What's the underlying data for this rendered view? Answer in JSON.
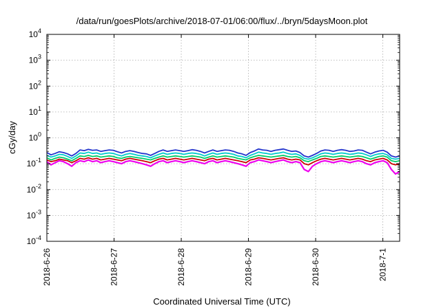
{
  "chart_data": {
    "type": "line",
    "title": "/data/run/goesPlots/archive/2018-07-01/06:00/flux/../bryn/5daysMoon.plot",
    "xlabel": "Coordinated Universal Time (UTC)",
    "ylabel": "cGy/day",
    "yscale": "log",
    "ylim": [
      0.0001,
      10000
    ],
    "y_ticks": [
      {
        "value": 0.0001,
        "base": "10",
        "exp": "-4"
      },
      {
        "value": 0.001,
        "base": "10",
        "exp": "-3"
      },
      {
        "value": 0.01,
        "base": "10",
        "exp": "-2"
      },
      {
        "value": 0.1,
        "base": "10",
        "exp": "-1"
      },
      {
        "value": 1,
        "base": "10",
        "exp": "0"
      },
      {
        "value": 10,
        "base": "10",
        "exp": "1"
      },
      {
        "value": 100,
        "base": "10",
        "exp": "2"
      },
      {
        "value": 1000,
        "base": "10",
        "exp": "3"
      },
      {
        "value": 10000,
        "base": "10",
        "exp": "4"
      }
    ],
    "xlim": [
      "2018-06-26T00:00",
      "2018-07-01T06:00"
    ],
    "x_ticks": [
      "2018-6-26",
      "2018-6-27",
      "2018-6-28",
      "2018-6-29",
      "2018-6-30",
      "2018-7-1"
    ],
    "grid": true,
    "series": [
      {
        "color": "#ee00ee",
        "typical": 0.11,
        "values": [
          0.12,
          0.09,
          0.11,
          0.13,
          0.12,
          0.1,
          0.08,
          0.11,
          0.13,
          0.12,
          0.14,
          0.12,
          0.13,
          0.11,
          0.12,
          0.13,
          0.12,
          0.11,
          0.1,
          0.12,
          0.13,
          0.12,
          0.11,
          0.1,
          0.09,
          0.08,
          0.1,
          0.12,
          0.13,
          0.11,
          0.12,
          0.13,
          0.12,
          0.11,
          0.12,
          0.13,
          0.12,
          0.11,
          0.1,
          0.12,
          0.13,
          0.11,
          0.12,
          0.13,
          0.12,
          0.11,
          0.1,
          0.09,
          0.08,
          0.11,
          0.12,
          0.14,
          0.13,
          0.12,
          0.11,
          0.12,
          0.13,
          0.14,
          0.12,
          0.11,
          0.12,
          0.11,
          0.06,
          0.05,
          0.08,
          0.1,
          0.12,
          0.13,
          0.12,
          0.11,
          0.12,
          0.13,
          0.12,
          0.11,
          0.12,
          0.13,
          0.12,
          0.1,
          0.09,
          0.11,
          0.12,
          0.13,
          0.11,
          0.06,
          0.04,
          0.05
        ]
      },
      {
        "color": "#cc0000",
        "typical": 0.13,
        "values": [
          0.14,
          0.12,
          0.13,
          0.15,
          0.14,
          0.13,
          0.11,
          0.13,
          0.16,
          0.15,
          0.17,
          0.15,
          0.16,
          0.14,
          0.15,
          0.16,
          0.15,
          0.14,
          0.13,
          0.15,
          0.16,
          0.15,
          0.14,
          0.13,
          0.12,
          0.11,
          0.13,
          0.15,
          0.16,
          0.14,
          0.15,
          0.16,
          0.15,
          0.14,
          0.15,
          0.16,
          0.15,
          0.14,
          0.13,
          0.15,
          0.16,
          0.14,
          0.15,
          0.16,
          0.15,
          0.14,
          0.13,
          0.12,
          0.11,
          0.14,
          0.15,
          0.17,
          0.16,
          0.15,
          0.14,
          0.15,
          0.16,
          0.17,
          0.15,
          0.14,
          0.15,
          0.14,
          0.1,
          0.09,
          0.11,
          0.13,
          0.15,
          0.16,
          0.15,
          0.14,
          0.15,
          0.16,
          0.15,
          0.14,
          0.15,
          0.16,
          0.15,
          0.13,
          0.12,
          0.14,
          0.15,
          0.16,
          0.14,
          0.1,
          0.09,
          0.1
        ]
      },
      {
        "color": "#00cc66",
        "typical": 0.16,
        "values": [
          0.17,
          0.14,
          0.16,
          0.18,
          0.17,
          0.15,
          0.13,
          0.16,
          0.2,
          0.19,
          0.21,
          0.19,
          0.2,
          0.18,
          0.19,
          0.2,
          0.19,
          0.17,
          0.16,
          0.18,
          0.19,
          0.18,
          0.17,
          0.16,
          0.15,
          0.14,
          0.16,
          0.18,
          0.2,
          0.18,
          0.19,
          0.2,
          0.19,
          0.18,
          0.19,
          0.2,
          0.19,
          0.18,
          0.16,
          0.18,
          0.2,
          0.18,
          0.19,
          0.2,
          0.19,
          0.18,
          0.16,
          0.15,
          0.14,
          0.17,
          0.19,
          0.21,
          0.2,
          0.19,
          0.18,
          0.19,
          0.2,
          0.21,
          0.19,
          0.18,
          0.19,
          0.17,
          0.13,
          0.12,
          0.14,
          0.16,
          0.19,
          0.2,
          0.19,
          0.18,
          0.19,
          0.2,
          0.19,
          0.18,
          0.19,
          0.2,
          0.19,
          0.17,
          0.15,
          0.17,
          0.19,
          0.2,
          0.18,
          0.13,
          0.12,
          0.13
        ]
      },
      {
        "color": "#00cccc",
        "typical": 0.2,
        "values": [
          0.21,
          0.18,
          0.2,
          0.23,
          0.22,
          0.19,
          0.16,
          0.2,
          0.26,
          0.25,
          0.28,
          0.25,
          0.26,
          0.23,
          0.25,
          0.26,
          0.25,
          0.22,
          0.2,
          0.23,
          0.25,
          0.23,
          0.21,
          0.2,
          0.19,
          0.17,
          0.2,
          0.23,
          0.26,
          0.23,
          0.25,
          0.26,
          0.25,
          0.23,
          0.25,
          0.26,
          0.25,
          0.23,
          0.2,
          0.23,
          0.26,
          0.23,
          0.25,
          0.26,
          0.25,
          0.23,
          0.2,
          0.19,
          0.17,
          0.21,
          0.24,
          0.28,
          0.26,
          0.25,
          0.23,
          0.25,
          0.26,
          0.28,
          0.25,
          0.23,
          0.24,
          0.21,
          0.16,
          0.15,
          0.17,
          0.2,
          0.24,
          0.26,
          0.25,
          0.23,
          0.25,
          0.26,
          0.25,
          0.23,
          0.24,
          0.26,
          0.25,
          0.22,
          0.19,
          0.22,
          0.24,
          0.25,
          0.22,
          0.16,
          0.15,
          0.16
        ]
      },
      {
        "color": "#2233cc",
        "typical": 0.25,
        "values": [
          0.27,
          0.22,
          0.25,
          0.29,
          0.27,
          0.24,
          0.2,
          0.25,
          0.34,
          0.32,
          0.36,
          0.33,
          0.34,
          0.3,
          0.32,
          0.34,
          0.33,
          0.29,
          0.26,
          0.3,
          0.32,
          0.3,
          0.27,
          0.25,
          0.24,
          0.21,
          0.25,
          0.3,
          0.34,
          0.3,
          0.32,
          0.34,
          0.32,
          0.3,
          0.32,
          0.35,
          0.33,
          0.3,
          0.26,
          0.3,
          0.34,
          0.3,
          0.32,
          0.34,
          0.33,
          0.3,
          0.26,
          0.24,
          0.21,
          0.27,
          0.31,
          0.37,
          0.34,
          0.33,
          0.3,
          0.33,
          0.35,
          0.37,
          0.33,
          0.3,
          0.31,
          0.27,
          0.2,
          0.18,
          0.21,
          0.25,
          0.31,
          0.34,
          0.33,
          0.3,
          0.33,
          0.35,
          0.33,
          0.3,
          0.31,
          0.34,
          0.33,
          0.28,
          0.24,
          0.28,
          0.31,
          0.33,
          0.28,
          0.2,
          0.18,
          0.2
        ]
      }
    ]
  }
}
